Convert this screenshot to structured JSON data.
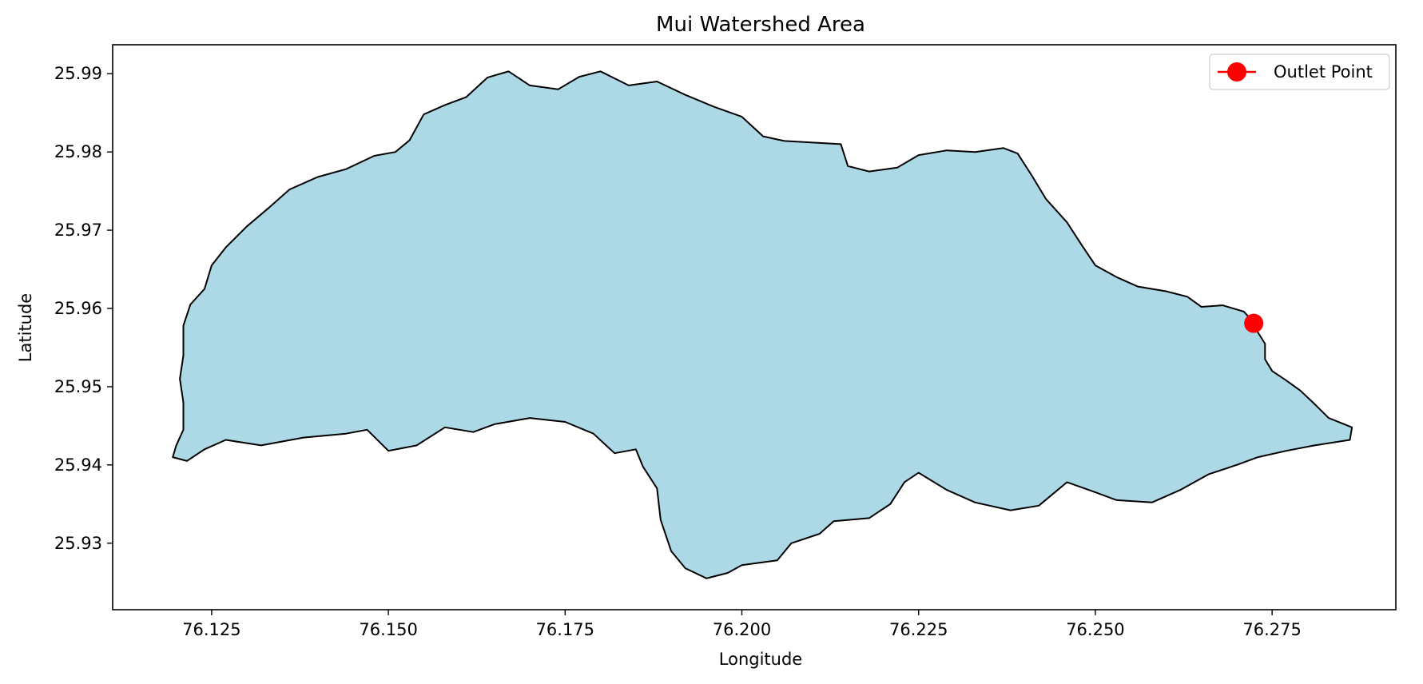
{
  "chart_data": {
    "type": "map",
    "title": "Mui Watershed Area",
    "xlabel": "Longitude",
    "ylabel": "Latitude",
    "xlim": [
      76.111,
      76.2925
    ],
    "ylim": [
      25.9215,
      25.9937
    ],
    "xticks": [
      76.125,
      76.15,
      76.175,
      76.2,
      76.225,
      76.25,
      76.275
    ],
    "xtick_labels": [
      "76.125",
      "76.150",
      "76.175",
      "76.200",
      "76.225",
      "76.250",
      "76.275"
    ],
    "yticks": [
      25.93,
      25.94,
      25.95,
      25.96,
      25.97,
      25.98,
      25.99
    ],
    "ytick_labels": [
      "25.93",
      "25.94",
      "25.95",
      "25.96",
      "25.97",
      "25.98",
      "25.99"
    ],
    "grid": false,
    "legend_position": "top-right",
    "watershed": {
      "fill_color": "#add8e6",
      "edge_color": "#000000",
      "boundary": [
        [
          76.1195,
          25.941
        ],
        [
          76.1215,
          25.9405
        ],
        [
          76.124,
          25.942
        ],
        [
          76.127,
          25.9432
        ],
        [
          76.132,
          25.9425
        ],
        [
          76.138,
          25.9435
        ],
        [
          76.144,
          25.944
        ],
        [
          76.147,
          25.9445
        ],
        [
          76.15,
          25.9418
        ],
        [
          76.154,
          25.9425
        ],
        [
          76.158,
          25.9448
        ],
        [
          76.162,
          25.9442
        ],
        [
          76.165,
          25.9452
        ],
        [
          76.17,
          25.946
        ],
        [
          76.175,
          25.9455
        ],
        [
          76.179,
          25.944
        ],
        [
          76.182,
          25.9415
        ],
        [
          76.185,
          25.942
        ],
        [
          76.186,
          25.9398
        ],
        [
          76.188,
          25.937
        ],
        [
          76.1885,
          25.933
        ],
        [
          76.19,
          25.929
        ],
        [
          76.192,
          25.9268
        ],
        [
          76.195,
          25.9255
        ],
        [
          76.198,
          25.9262
        ],
        [
          76.2,
          25.9272
        ],
        [
          76.205,
          25.9278
        ],
        [
          76.207,
          25.93
        ],
        [
          76.211,
          25.9312
        ],
        [
          76.213,
          25.9328
        ],
        [
          76.218,
          25.9332
        ],
        [
          76.221,
          25.935
        ],
        [
          76.223,
          25.9378
        ],
        [
          76.225,
          25.939
        ],
        [
          76.229,
          25.9368
        ],
        [
          76.233,
          25.9352
        ],
        [
          76.238,
          25.9342
        ],
        [
          76.242,
          25.9348
        ],
        [
          76.246,
          25.9378
        ],
        [
          76.25,
          25.9365
        ],
        [
          76.253,
          25.9355
        ],
        [
          76.258,
          25.9352
        ],
        [
          76.262,
          25.9368
        ],
        [
          76.266,
          25.9388
        ],
        [
          76.27,
          25.94
        ],
        [
          76.273,
          25.941
        ],
        [
          76.277,
          25.9418
        ],
        [
          76.281,
          25.9425
        ],
        [
          76.286,
          25.9432
        ],
        [
          76.2863,
          25.9448
        ],
        [
          76.283,
          25.946
        ],
        [
          76.281,
          25.9478
        ],
        [
          76.279,
          25.9495
        ],
        [
          76.277,
          25.9508
        ],
        [
          76.275,
          25.952
        ],
        [
          76.274,
          25.9535
        ],
        [
          76.274,
          25.9555
        ],
        [
          76.2728,
          25.9572
        ],
        [
          76.2724,
          25.9582
        ],
        [
          76.271,
          25.9596
        ],
        [
          76.268,
          25.9604
        ],
        [
          76.265,
          25.9602
        ],
        [
          76.263,
          25.9615
        ],
        [
          76.26,
          25.9622
        ],
        [
          76.256,
          25.9628
        ],
        [
          76.253,
          25.964
        ],
        [
          76.25,
          25.9655
        ],
        [
          76.248,
          25.9682
        ],
        [
          76.246,
          25.971
        ],
        [
          76.243,
          25.974
        ],
        [
          76.241,
          25.977
        ],
        [
          76.239,
          25.9798
        ],
        [
          76.237,
          25.9805
        ],
        [
          76.233,
          25.98
        ],
        [
          76.229,
          25.9802
        ],
        [
          76.225,
          25.9796
        ],
        [
          76.222,
          25.978
        ],
        [
          76.218,
          25.9775
        ],
        [
          76.215,
          25.9782
        ],
        [
          76.214,
          25.981
        ],
        [
          76.21,
          25.9812
        ],
        [
          76.206,
          25.9814
        ],
        [
          76.203,
          25.982
        ],
        [
          76.2,
          25.9845
        ],
        [
          76.196,
          25.9858
        ],
        [
          76.192,
          25.9873
        ],
        [
          76.188,
          25.989
        ],
        [
          76.184,
          25.9885
        ],
        [
          76.18,
          25.9903
        ],
        [
          76.177,
          25.9896
        ],
        [
          76.174,
          25.988
        ],
        [
          76.17,
          25.9885
        ],
        [
          76.167,
          25.9903
        ],
        [
          76.164,
          25.9895
        ],
        [
          76.161,
          25.987
        ],
        [
          76.158,
          25.986
        ],
        [
          76.155,
          25.9848
        ],
        [
          76.153,
          25.9815
        ],
        [
          76.151,
          25.98
        ],
        [
          76.148,
          25.9795
        ],
        [
          76.144,
          25.9778
        ],
        [
          76.14,
          25.9768
        ],
        [
          76.136,
          25.9752
        ],
        [
          76.133,
          25.9728
        ],
        [
          76.13,
          25.9705
        ],
        [
          76.127,
          25.9678
        ],
        [
          76.125,
          25.9655
        ],
        [
          76.124,
          25.9625
        ],
        [
          76.122,
          25.9605
        ],
        [
          76.121,
          25.9578
        ],
        [
          76.121,
          25.954
        ],
        [
          76.1205,
          25.951
        ],
        [
          76.121,
          25.948
        ],
        [
          76.121,
          25.9445
        ],
        [
          76.12,
          25.9425
        ],
        [
          76.1195,
          25.941
        ]
      ]
    },
    "series": [
      {
        "name": "Outlet Point",
        "color": "#ff0000",
        "x": [
          76.2724
        ],
        "y": [
          25.9581
        ]
      }
    ]
  }
}
